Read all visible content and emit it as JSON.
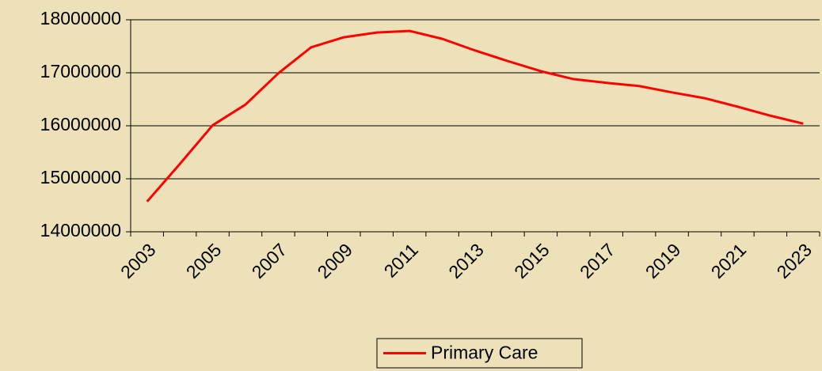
{
  "chart_data": {
    "type": "line",
    "categories": [
      "2003",
      null,
      "2005",
      null,
      "2007",
      null,
      "2009",
      null,
      "2011",
      null,
      "2013",
      null,
      "2015",
      null,
      "2017",
      null,
      "2019",
      null,
      "2021",
      null,
      "2023"
    ],
    "series": [
      {
        "name": "Primary Care",
        "color": "#ff0000",
        "values": [
          14570000,
          15280000,
          16010000,
          16400000,
          16990000,
          17480000,
          17670000,
          17760000,
          17790000,
          17640000,
          17420000,
          17220000,
          17030000,
          16880000,
          16810000,
          16750000,
          16630000,
          16520000,
          16360000,
          16190000,
          16040000
        ]
      }
    ],
    "ylim": [
      14000000,
      18000000
    ],
    "yticks": [
      14000000,
      15000000,
      16000000,
      17000000,
      18000000
    ],
    "grid": true,
    "legend": "bottom"
  }
}
